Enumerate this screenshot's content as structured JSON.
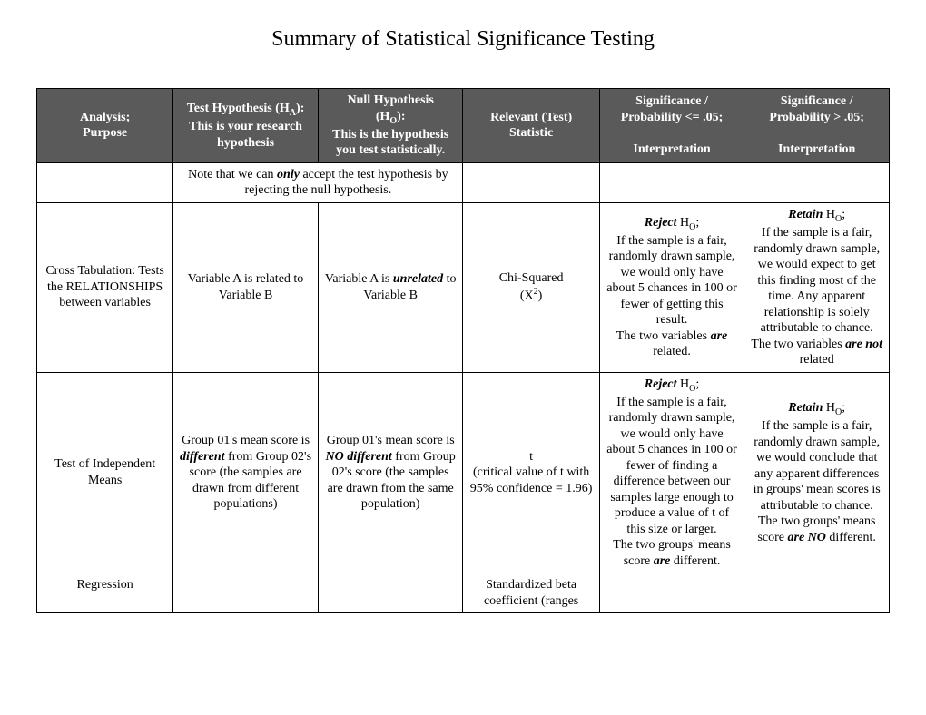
{
  "title": "Summary of Statistical Significance Testing",
  "headers": {
    "c1a": "Analysis;",
    "c1b": "Purpose",
    "c2a": "Test Hypothesis (H",
    "c2a_sub": "A",
    "c2a_end": "):",
    "c2b": "This is your research hypothesis",
    "c3a": "Null Hypothesis",
    "c3b": "(H",
    "c3b_sub": "O",
    "c3b_end": "):",
    "c3c": "This is the hypothesis you test statistically.",
    "c4": "Relevant (Test) Statistic",
    "c5a": "Significance / Probability <= .05;",
    "c5b": "Interpretation",
    "c6a": "Significance / Probability > .05;",
    "c6b": "Interpretation"
  },
  "note": {
    "pre": "Note that we can ",
    "only": "only",
    "post": " accept the test hypothesis by rejecting the null hypothesis."
  },
  "row1": {
    "c1": "Cross Tabulation: Tests the RELATIONSHIPS between variables",
    "c2": "Variable A is related to Variable B",
    "c3a": "Variable A is ",
    "c3b": "unrelated",
    "c3c": " to Variable B",
    "c4a": "Chi-Squared",
    "c4b": "(X",
    "c4sup": "2",
    "c4c": ")",
    "c5_rej": "Reject",
    "c5_ho": " H",
    "c5_sub": "O",
    "c5_semi": ";",
    "c5_body": "If the sample is a fair, randomly drawn sample, we would only have about 5 chances in 100 or fewer of getting this result.",
    "c5_end1": "The two variables ",
    "c5_are": "are",
    "c5_end2": " related.",
    "c6_ret": "Retain",
    "c6_ho": " H",
    "c6_sub": "O",
    "c6_semi": ";",
    "c6_body": "If the sample is a fair, randomly drawn sample, we would expect to get this finding most of the time. Any apparent relationship is solely attributable to chance.",
    "c6_end1": "The two variables ",
    "c6_are": "are not",
    "c6_end2": "  related"
  },
  "row2": {
    "c1": "Test of Independent Means",
    "c2a": "Group 01's mean score is ",
    "c2b": "different",
    "c2c": " from Group 02's score (the samples are drawn from different populations)",
    "c3a": "Group 01's mean score is ",
    "c3b": "NO different",
    "c3c": " from Group 02's score (the samples are drawn from the same population)",
    "c4a": "t",
    "c4b": "(critical value of t with 95% confidence = 1.96)",
    "c5_rej": "Reject",
    "c5_ho": " H",
    "c5_sub": "O",
    "c5_semi": ";",
    "c5_body": "If the sample is a fair, randomly drawn sample, we would only have about 5 chances in 100 or fewer of finding a difference between our samples large enough to produce a value of t of this size or larger.",
    "c5_end1": "The two groups' means score ",
    "c5_are": "are",
    "c5_end2": " different.",
    "c6_ret": "Retain",
    "c6_ho": "  H",
    "c6_sub": "O",
    "c6_semi": ";",
    "c6_body": "If the sample is a fair, randomly drawn sample, we would conclude that any apparent differences in groups' mean scores is attributable to chance.",
    "c6_end1": "The two groups' means score ",
    "c6_are": "are NO",
    "c6_end2": " different."
  },
  "row3": {
    "c1": "Regression",
    "c4": "Standardized beta coefficient (ranges"
  }
}
